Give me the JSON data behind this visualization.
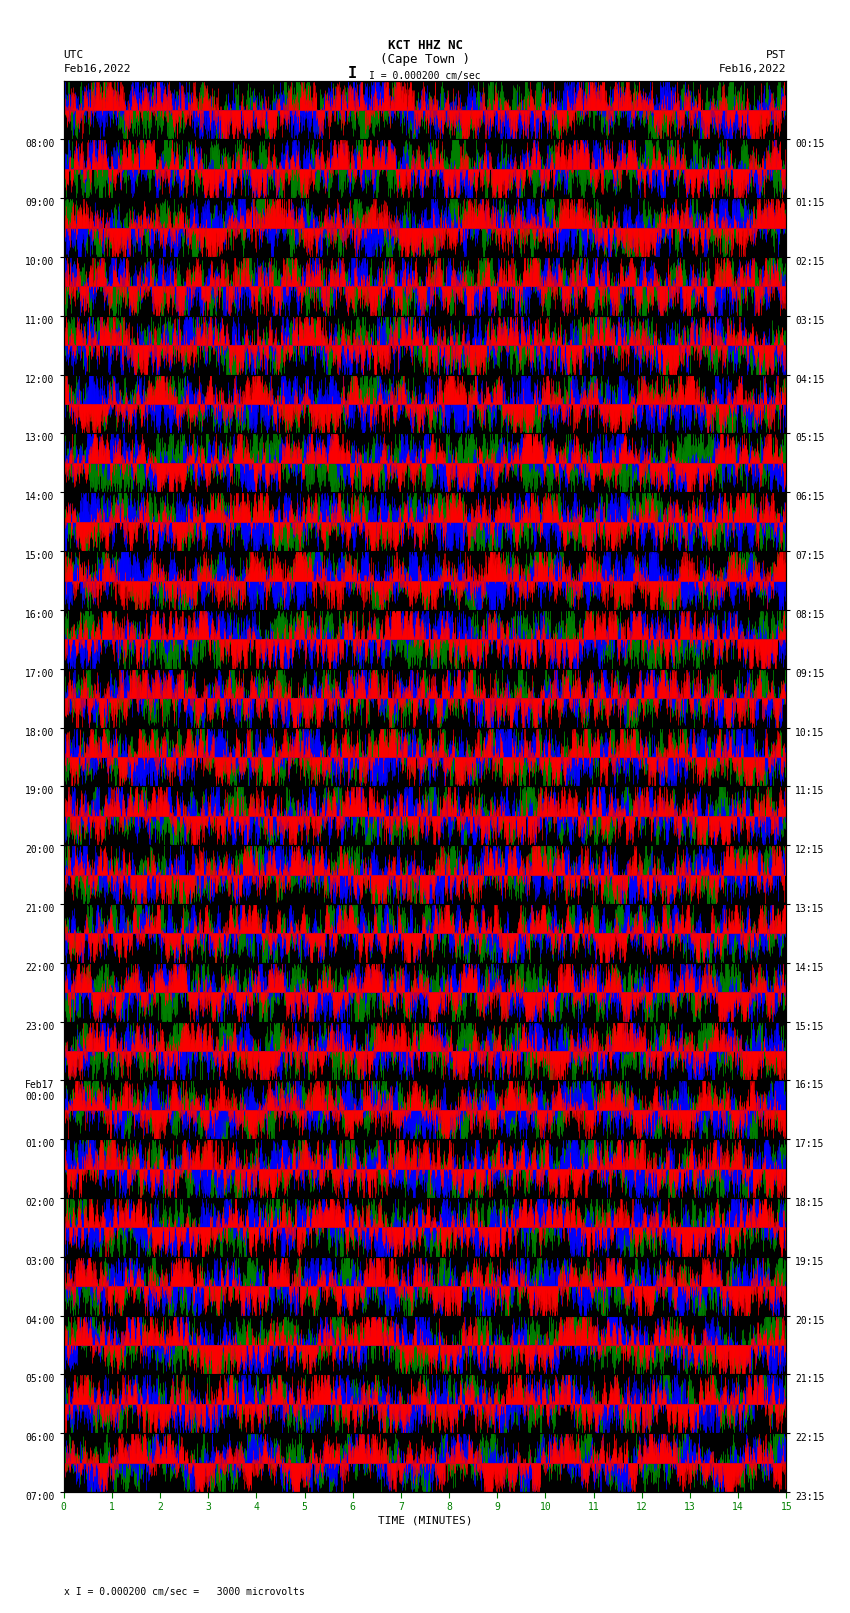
{
  "title_line1": "KCT HHZ NC",
  "title_line2": "(Cape Town )",
  "scale_label": "I = 0.000200 cm/sec",
  "left_header_line1": "UTC",
  "left_header_line2": "Feb16,2022",
  "right_header_line1": "PST",
  "right_header_line2": "Feb16,2022",
  "left_times_utc": [
    "08:00",
    "09:00",
    "10:00",
    "11:00",
    "12:00",
    "13:00",
    "14:00",
    "15:00",
    "16:00",
    "17:00",
    "18:00",
    "19:00",
    "20:00",
    "21:00",
    "22:00",
    "23:00",
    "Feb17\n00:00",
    "01:00",
    "02:00",
    "03:00",
    "04:00",
    "05:00",
    "06:00",
    "07:00"
  ],
  "right_times_pst": [
    "00:15",
    "01:15",
    "02:15",
    "03:15",
    "04:15",
    "05:15",
    "06:15",
    "07:15",
    "08:15",
    "09:15",
    "10:15",
    "11:15",
    "12:15",
    "13:15",
    "14:15",
    "15:15",
    "16:15",
    "17:15",
    "18:15",
    "19:15",
    "20:15",
    "21:15",
    "22:15",
    "23:15"
  ],
  "xlabel": "TIME (MINUTES)",
  "bottom_label": "x I = 0.000200 cm/sec =   3000 microvolts",
  "num_rows": 24,
  "x_ticks": [
    0,
    1,
    2,
    3,
    4,
    5,
    6,
    7,
    8,
    9,
    10,
    11,
    12,
    13,
    14,
    15
  ],
  "bg_color": "#ffffff",
  "plot_bg_color": "#000000",
  "seed": 42,
  "fig_width": 8.5,
  "fig_height": 16.13,
  "dpi": 100
}
